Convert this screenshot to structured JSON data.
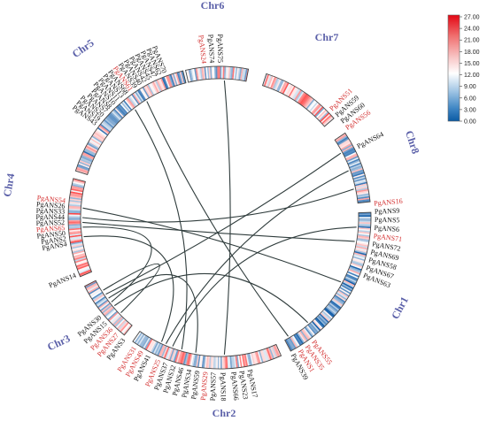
{
  "diagram": {
    "chromosomes": [
      {
        "id": "chr6",
        "name": "Chr6"
      },
      {
        "id": "chr7",
        "name": "Chr7"
      },
      {
        "id": "chr8",
        "name": "Chr8"
      },
      {
        "id": "chr1",
        "name": "Chr1"
      },
      {
        "id": "chr2",
        "name": "Chr2"
      },
      {
        "id": "chr3",
        "name": "Chr3"
      },
      {
        "id": "chr4",
        "name": "Chr4"
      },
      {
        "id": "chr5",
        "name": "Chr5"
      }
    ],
    "genes": [
      {
        "label": "PgANS24",
        "color": "#d32f2f"
      },
      {
        "label": "PgANS74",
        "color": "#111111"
      },
      {
        "label": "PgANS75",
        "color": "#111111"
      },
      {
        "label": "PgANS70",
        "color": "#111111"
      },
      {
        "label": "PgANS62",
        "color": "#111111"
      },
      {
        "label": "PgANS47",
        "color": "#111111"
      },
      {
        "label": "PgANS45",
        "color": "#111111"
      },
      {
        "label": "PgANS42",
        "color": "#111111"
      },
      {
        "label": "PgANS40",
        "color": "#111111"
      },
      {
        "label": "PgANS39",
        "color": "#111111"
      },
      {
        "label": "PgANS61",
        "color": "#d32f2f"
      },
      {
        "label": "PgANS68",
        "color": "#111111"
      },
      {
        "label": "PgANS13",
        "color": "#111111"
      },
      {
        "label": "PgANS11",
        "color": "#111111"
      },
      {
        "label": "PgANS10",
        "color": "#111111"
      },
      {
        "label": "PgANS8",
        "color": "#111111"
      },
      {
        "label": "PgANS7",
        "color": "#111111"
      },
      {
        "label": "PgANS20",
        "color": "#111111"
      },
      {
        "label": "PgANS19",
        "color": "#111111"
      },
      {
        "label": "PgANS43",
        "color": "#111111"
      },
      {
        "label": "PgANS54",
        "color": "#d32f2f"
      },
      {
        "label": "PgANS26",
        "color": "#111111"
      },
      {
        "label": "PgANS33",
        "color": "#111111"
      },
      {
        "label": "PgANS44",
        "color": "#111111"
      },
      {
        "label": "PgANS52",
        "color": "#111111"
      },
      {
        "label": "PgANS65",
        "color": "#d32f2f"
      },
      {
        "label": "PgANS50",
        "color": "#111111"
      },
      {
        "label": "PgANS2",
        "color": "#111111"
      },
      {
        "label": "PgANS4",
        "color": "#111111"
      },
      {
        "label": "PgANS14",
        "color": "#111111"
      },
      {
        "label": "PgANS30",
        "color": "#111111"
      },
      {
        "label": "PgANS15",
        "color": "#111111"
      },
      {
        "label": "PgANS36",
        "color": "#d32f2f"
      },
      {
        "label": "PgANS27",
        "color": "#d32f2f"
      },
      {
        "label": "PgANS3",
        "color": "#111111"
      },
      {
        "label": "PgANS31",
        "color": "#d32f2f"
      },
      {
        "label": "PgANS49",
        "color": "#d32f2f"
      },
      {
        "label": "PgANS41",
        "color": "#111111"
      },
      {
        "label": "PgANS25",
        "color": "#d32f2f"
      },
      {
        "label": "PgANS37",
        "color": "#111111"
      },
      {
        "label": "PgANS32",
        "color": "#111111"
      },
      {
        "label": "PgANS46",
        "color": "#111111"
      },
      {
        "label": "PgANS34",
        "color": "#111111"
      },
      {
        "label": "PgANS59",
        "color": "#111111"
      },
      {
        "label": "PgANS29",
        "color": "#d32f2f"
      },
      {
        "label": "PgANS57",
        "color": "#111111"
      },
      {
        "label": "PgANS18",
        "color": "#111111"
      },
      {
        "label": "PgANS66",
        "color": "#111111"
      },
      {
        "label": "PgANS23",
        "color": "#111111"
      },
      {
        "label": "PgANS17",
        "color": "#111111"
      },
      {
        "label": "PgANS39",
        "color": "#111111"
      },
      {
        "label": "PgANS1",
        "color": "#d32f2f"
      },
      {
        "label": "PgANS35",
        "color": "#d32f2f"
      },
      {
        "label": "PgANS55",
        "color": "#d32f2f"
      },
      {
        "label": "PgANS63",
        "color": "#111111"
      },
      {
        "label": "PgANS67",
        "color": "#111111"
      },
      {
        "label": "PgANS58",
        "color": "#111111"
      },
      {
        "label": "PgANS69",
        "color": "#111111"
      },
      {
        "label": "PgANS72",
        "color": "#111111"
      },
      {
        "label": "PgANS71",
        "color": "#d32f2f"
      },
      {
        "label": "PgANS6",
        "color": "#111111"
      },
      {
        "label": "PgANS5",
        "color": "#111111"
      },
      {
        "label": "PgANS9",
        "color": "#111111"
      },
      {
        "label": "PgANS16",
        "color": "#d32f2f"
      },
      {
        "label": "PgANS64",
        "color": "#111111"
      },
      {
        "label": "PgANS56",
        "color": "#d32f2f"
      },
      {
        "label": "PgANS60",
        "color": "#111111"
      },
      {
        "label": "PgANS59",
        "color": "#111111"
      },
      {
        "label": "PgANS51",
        "color": "#d32f2f"
      }
    ],
    "links": [
      [
        "chr5",
        "chr1"
      ],
      [
        "chr5",
        "chr2"
      ],
      [
        "chr6",
        "chr2"
      ],
      [
        "chr4",
        "chr1"
      ],
      [
        "chr4",
        "chr1"
      ],
      [
        "chr4",
        "chr2"
      ],
      [
        "chr4",
        "chr3"
      ],
      [
        "chr3",
        "chr8"
      ],
      [
        "chr3",
        "chr1"
      ],
      [
        "chr3",
        "chr3"
      ],
      [
        "chr2",
        "chr1"
      ],
      [
        "chr2",
        "chr8"
      ],
      [
        "chr3",
        "chr2"
      ],
      [
        "chr4",
        "chr8"
      ]
    ]
  },
  "legend": {
    "ticks": [
      "27.00",
      "24.00",
      "21.00",
      "18.00",
      "15.00",
      "12.00",
      "9.00",
      "6.00",
      "3.00",
      "0.00"
    ],
    "gradient": [
      "#e30613",
      "#f07070",
      "#f6b3b3",
      "#ffffff",
      "#a9cbe6",
      "#4a90c8",
      "#0f5fa8"
    ]
  }
}
